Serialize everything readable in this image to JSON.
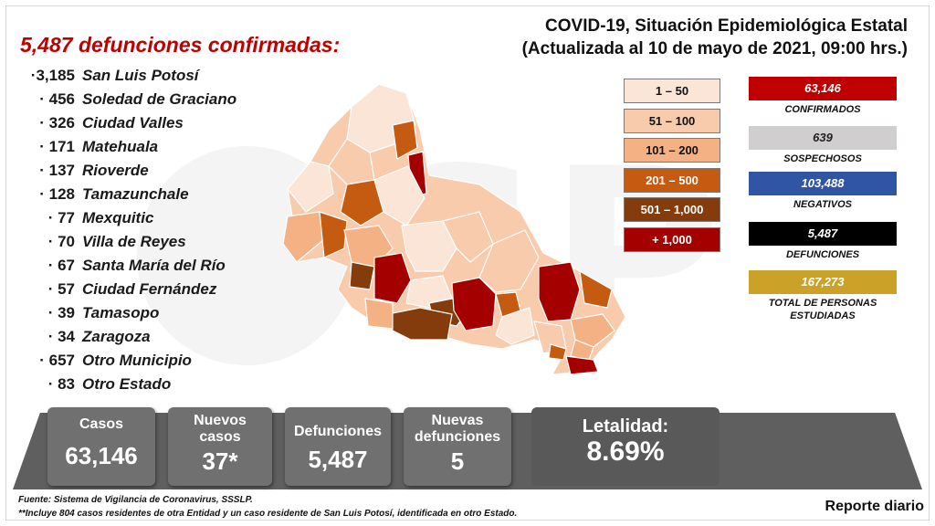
{
  "headline": "5,487 defunciones confirmadas:",
  "title": {
    "line1": "COVID-19, Situación Epidemiológica Estatal",
    "line2": "(Actualizada al 10 de mayo de 2021, 09:00 hrs.)"
  },
  "deaths_by_municipality": [
    {
      "count": "·3,185",
      "name": "San Luis Potosí"
    },
    {
      "count": "· 456",
      "name": "Soledad de Graciano"
    },
    {
      "count": "· 326",
      "name": "Ciudad Valles"
    },
    {
      "count": "· 171",
      "name": "Matehuala"
    },
    {
      "count": "· 137",
      "name": "Rioverde"
    },
    {
      "count": "· 128",
      "name": "Tamazunchale"
    },
    {
      "count": "· 77",
      "name": "Mexquitic"
    },
    {
      "count": "· 70",
      "name": "Villa de Reyes"
    },
    {
      "count": "· 67",
      "name": "Santa María del Río"
    },
    {
      "count": "· 57",
      "name": "Ciudad Fernández"
    },
    {
      "count": "· 39",
      "name": "Tamasopo"
    },
    {
      "count": "· 34",
      "name": "Zaragoza"
    },
    {
      "count": "· 657",
      "name": "Otro Municipio"
    },
    {
      "count": "· 83",
      "name": "Otro Estado"
    }
  ],
  "legend": [
    {
      "label": "1 – 50",
      "color": "#fbe5d6",
      "text_color": "#111111"
    },
    {
      "label": "51 – 100",
      "color": "#f8cbad",
      "text_color": "#111111"
    },
    {
      "label": "101 – 200",
      "color": "#f4b183",
      "text_color": "#111111"
    },
    {
      "label": "201 – 500",
      "color": "#c55a11",
      "text_color": "#ffffff"
    },
    {
      "label": "501 – 1,000",
      "color": "#843c0c",
      "text_color": "#ffffff"
    },
    {
      "label": "+ 1,000",
      "color": "#a50000",
      "text_color": "#ffffff"
    }
  ],
  "stats": [
    {
      "value": "63,146",
      "label": "CONFIRMADOS",
      "color": "#c00000"
    },
    {
      "value": "639",
      "label": "SOSPECHOSOS",
      "color": "#d0cece"
    },
    {
      "value": "103,488",
      "label": "NEGATIVOS",
      "color": "#2f55a4"
    },
    {
      "value": "5,487",
      "label": "DEFUNCIONES",
      "color": "#000000"
    },
    {
      "value": "167,273",
      "label": "TOTAL DE PERSONAS ESTUDIADAS",
      "color": "#c9a227"
    }
  ],
  "summary": {
    "casos_label": "Casos",
    "casos_value": "63,146",
    "nuevos_casos_label": "Nuevos casos",
    "nuevos_casos_value": "37*",
    "defunciones_label": "Defunciones",
    "defunciones_value": "5,487",
    "nuevas_defunciones_label": "Nuevas defunciones",
    "nuevas_defunciones_value": "5",
    "letalidad_label": "Letalidad:",
    "letalidad_value": "8.69%"
  },
  "footnotes": {
    "source": "Fuente: Sistema de Vigilancia de Coronavirus, SSSLP.",
    "note": "**Incluye 804 casos residentes de otra Entidad y un caso residente de San Luis Potosí, identificada en otro Estado."
  },
  "report_label": "Reporte diario"
}
